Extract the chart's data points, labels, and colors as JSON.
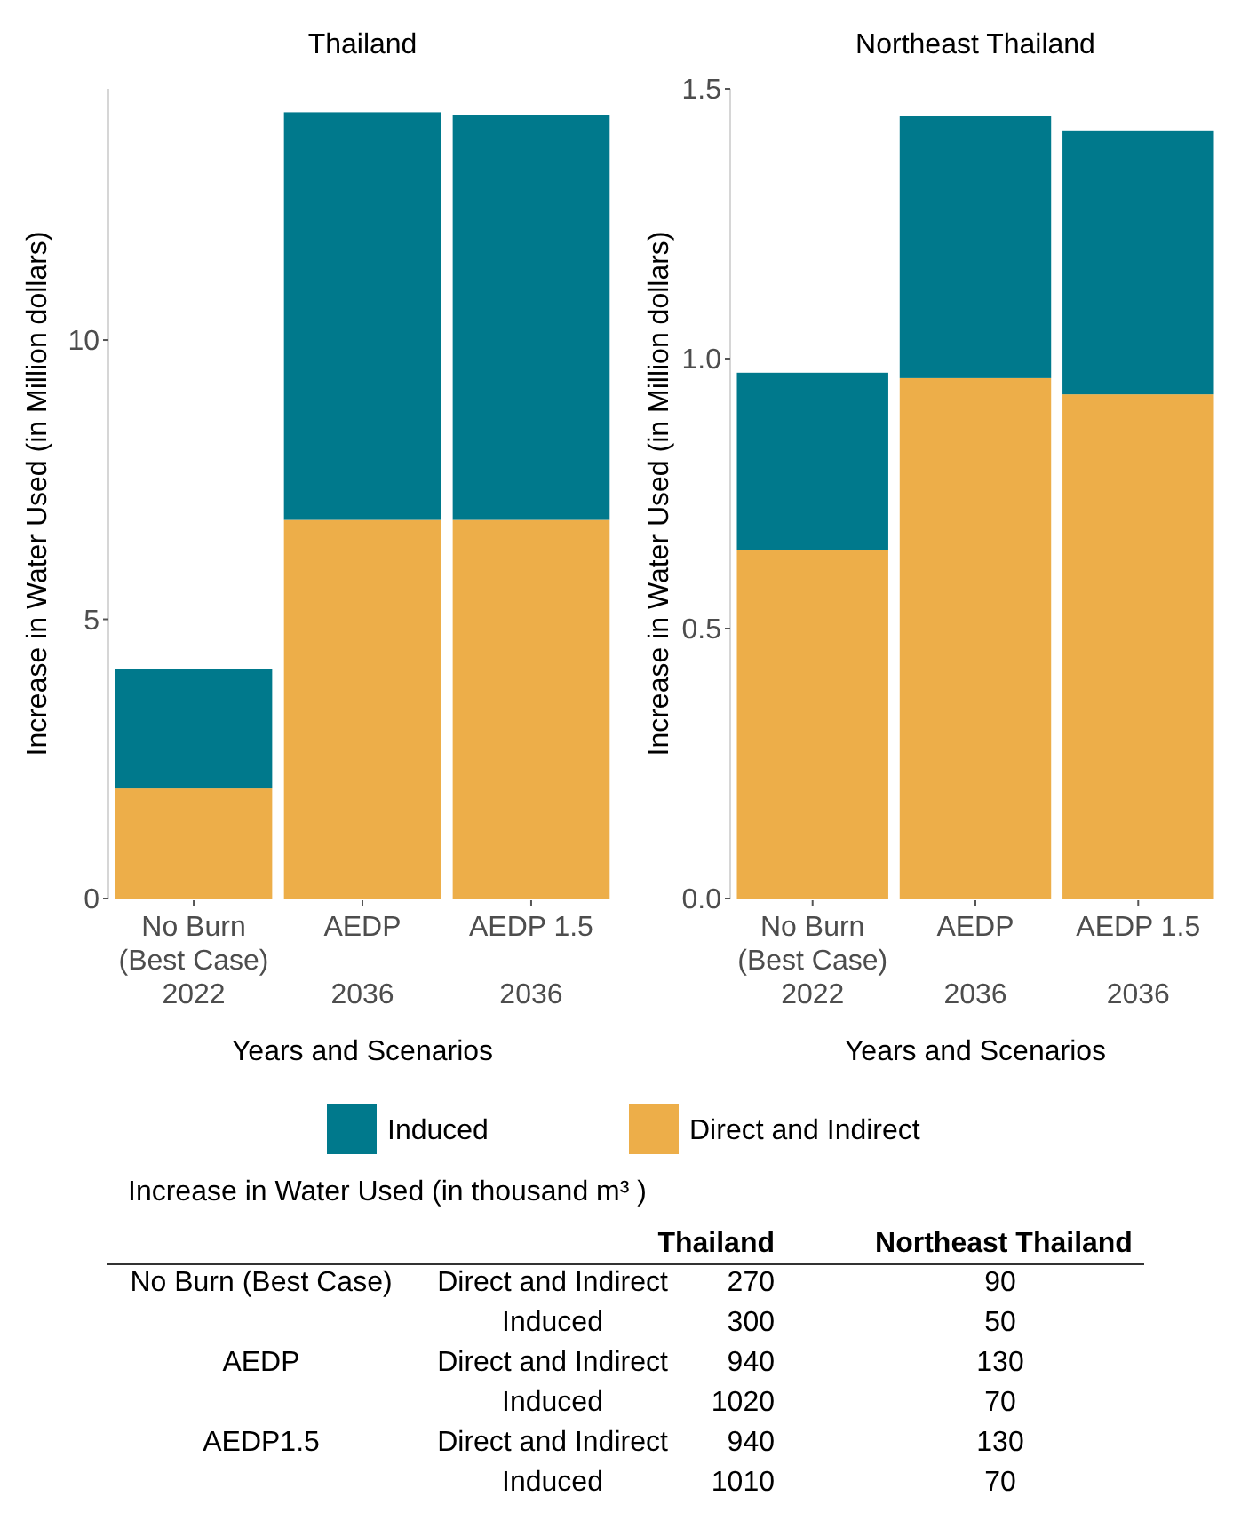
{
  "chart_data": [
    {
      "type": "bar",
      "stacked": true,
      "title": "Thailand",
      "xlabel": "Years and Scenarios",
      "ylabel": "Increase in Water Used (in Million dollars)",
      "categories": [
        "No Burn\n(Best Case)\n2022",
        "AEDP\n\n2036",
        "AEDP 1.5\n\n2036"
      ],
      "ylim": [
        0,
        14.5
      ],
      "yticks": [
        0,
        5,
        10
      ],
      "grid": false,
      "legend": "bottom",
      "series": [
        {
          "name": "Direct and Indirect",
          "color": "#edae49",
          "values": [
            1.97,
            6.78,
            6.78
          ]
        },
        {
          "name": "Induced",
          "color": "#00798c",
          "values": [
            2.14,
            7.3,
            7.25
          ]
        }
      ]
    },
    {
      "type": "bar",
      "stacked": true,
      "title": "Northeast Thailand",
      "xlabel": "Years and Scenarios",
      "ylabel": "Increase in Water Used (in Million dollars)",
      "categories": [
        "No Burn\n(Best Case)\n2022",
        "AEDP\n\n2036",
        "AEDP 1.5\n\n2036"
      ],
      "ylim": [
        0,
        1.5
      ],
      "yticks": [
        {
          "value": 0,
          "label": "0.0"
        },
        {
          "value": 0.5,
          "label": "0.5"
        },
        {
          "value": 1,
          "label": "1.0"
        },
        {
          "value": 1.5,
          "label": "1.5"
        }
      ],
      "grid": false,
      "series": [
        {
          "color": "#edae49",
          "values": [
            0.646,
            0.964,
            0.934
          ]
        },
        {
          "color": "#00798c",
          "values": [
            0.328,
            0.485,
            0.489
          ]
        }
      ]
    },
    {
      "type": "heatmap",
      "data_labels": true,
      "title": "Increase in Water Used (in thousand m³ )",
      "categories": [
        "Thailand",
        "Northeast Thailand"
      ],
      "y_categories": [
        "No Burn (Best Case)",
        null,
        "AEDP",
        null,
        "AEDP1.5",
        null
      ],
      "y2_categories": [
        "Direct and Indirect",
        "Induced",
        "Direct and Indirect",
        "Induced",
        "Direct and Indirect",
        "Induced"
      ],
      "cells": [
        [
          270,
          90
        ],
        [
          300,
          50
        ],
        [
          940,
          130
        ],
        [
          1020,
          70
        ],
        [
          940,
          130
        ],
        [
          1010,
          70
        ]
      ]
    }
  ]
}
